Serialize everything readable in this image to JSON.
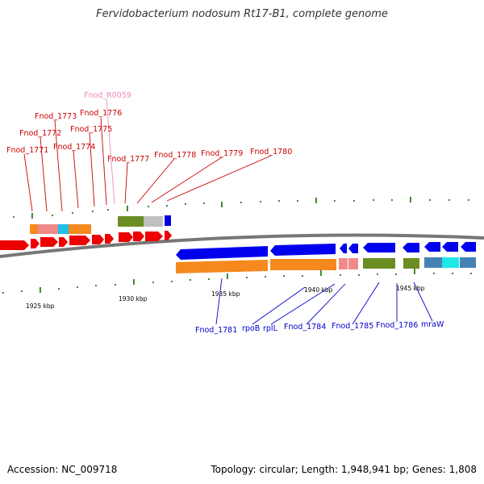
{
  "title": "Fervidobacterium nodosum Rt17-B1, complete genome",
  "footer": {
    "accession": "Accession: NC_009718",
    "stats": "Topology: circular; Length: 1,948,941 bp; Genes: 1,808"
  },
  "colors": {
    "red_label": "#cc0000",
    "pink_label": "#ee88bb",
    "blue_label": "#0000cc",
    "backbone": "#777777",
    "tick": "#2e7d1e"
  },
  "scale_labels": [
    "1925 kbp",
    "1930 kbp",
    "1935 kbp",
    "1940 kbp",
    "1945 kbp"
  ],
  "top_labels": [
    "Fnod_1771",
    "Fnod_1772",
    "Fnod_1773",
    "Fnod_1774",
    "Fnod_R0059",
    "Fnod_1776",
    "Fnod_1775",
    "Fnod_1777",
    "Fnod_1778",
    "Fnod_1779",
    "Fnod_1780"
  ],
  "bottom_labels": [
    "Fnod_1781",
    "rpoB",
    "rplL",
    "Fnod_1784",
    "Fnod_1785",
    "Fnod_1786",
    "mraW"
  ]
}
